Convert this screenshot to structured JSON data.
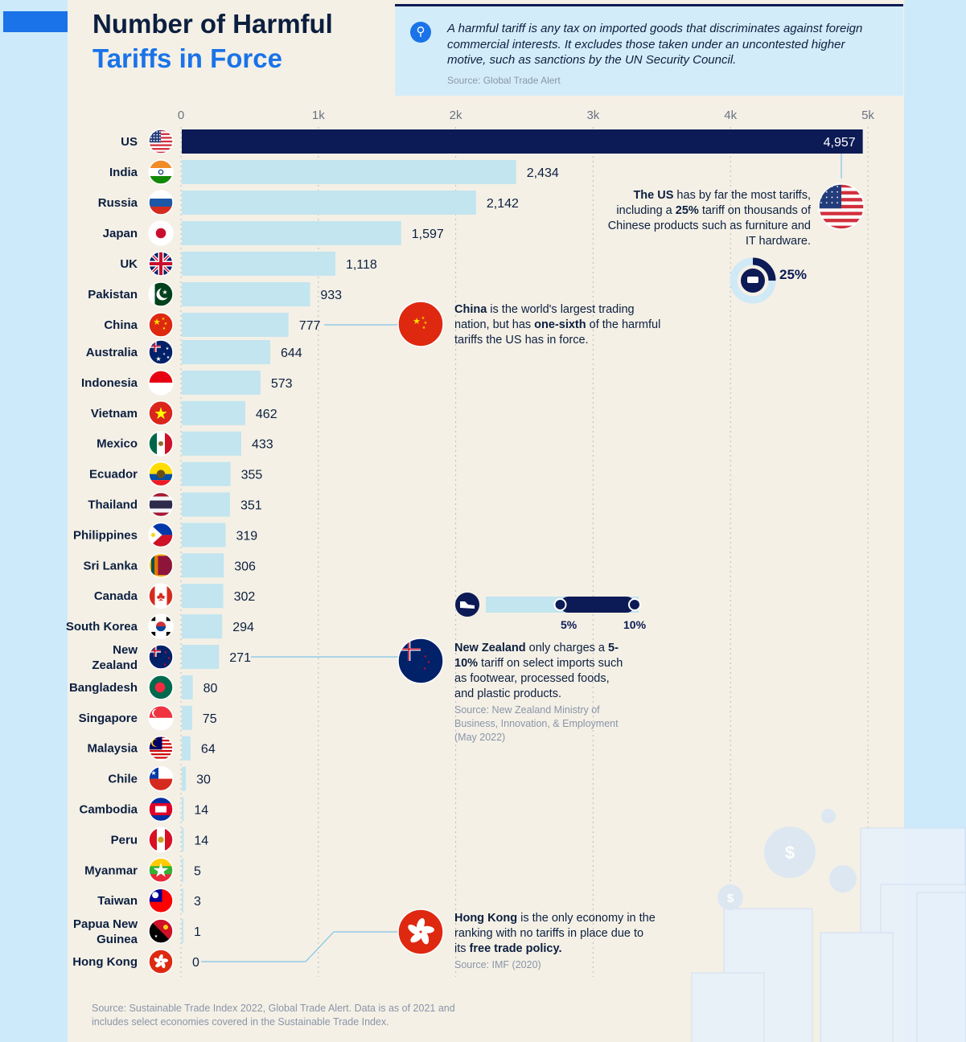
{
  "header": {
    "title_line1": "Number of Harmful",
    "title_line2": "Tariffs in Force",
    "definition": "A harmful tariff is any tax on imported goods that discriminates against foreign commercial interests. It excludes those taken under an uncontested higher motive, such as sanctions by the UN Security Council.",
    "definition_source": "Source: Global Trade Alert",
    "search_icon": "magnifier-icon"
  },
  "chart_data": {
    "type": "bar",
    "orientation": "horizontal",
    "categories": [
      "US",
      "India",
      "Russia",
      "Japan",
      "UK",
      "Pakistan",
      "China",
      "Australia",
      "Indonesia",
      "Vietnam",
      "Mexico",
      "Ecuador",
      "Thailand",
      "Philippines",
      "Sri Lanka",
      "Canada",
      "South Korea",
      "New Zealand",
      "Bangladesh",
      "Singapore",
      "Malaysia",
      "Chile",
      "Cambodia",
      "Peru",
      "Myanmar",
      "Taiwan",
      "Papua New Guinea",
      "Hong Kong"
    ],
    "values": [
      4957,
      2434,
      2142,
      1597,
      1118,
      933,
      777,
      644,
      573,
      462,
      433,
      355,
      351,
      319,
      306,
      302,
      294,
      271,
      80,
      75,
      64,
      30,
      14,
      14,
      5,
      3,
      1,
      0
    ],
    "value_labels": [
      "4,957",
      "2,434",
      "2,142",
      "1,597",
      "1,118",
      "933",
      "777",
      "644",
      "573",
      "462",
      "433",
      "355",
      "351",
      "319",
      "306",
      "302",
      "294",
      "271",
      "80",
      "75",
      "64",
      "30",
      "14",
      "14",
      "5",
      "3",
      "1",
      "0"
    ],
    "xlim": [
      0,
      5000
    ],
    "x_ticks": [
      0,
      1000,
      2000,
      3000,
      4000,
      5000
    ],
    "x_tick_labels": [
      "0",
      "1k",
      "2k",
      "3k",
      "4k",
      "5k"
    ],
    "highlight_category": "US",
    "colors": {
      "bar": "#c2e5ef",
      "highlight_bar": "#0c1a55",
      "title_dark": "#0c1f3f",
      "title_blue": "#1a73e8"
    },
    "grid": true,
    "flag_icons": [
      "us-flag-icon",
      "india-flag-icon",
      "russia-flag-icon",
      "japan-flag-icon",
      "uk-flag-icon",
      "pakistan-flag-icon",
      "china-flag-icon",
      "australia-flag-icon",
      "indonesia-flag-icon",
      "vietnam-flag-icon",
      "mexico-flag-icon",
      "ecuador-flag-icon",
      "thailand-flag-icon",
      "philippines-flag-icon",
      "sri-lanka-flag-icon",
      "canada-flag-icon",
      "south-korea-flag-icon",
      "new-zealand-flag-icon",
      "bangladesh-flag-icon",
      "singapore-flag-icon",
      "malaysia-flag-icon",
      "chile-flag-icon",
      "cambodia-flag-icon",
      "peru-flag-icon",
      "myanmar-flag-icon",
      "taiwan-flag-icon",
      "papua-new-guinea-flag-icon",
      "hong-kong-flag-icon"
    ]
  },
  "annotations": {
    "us": {
      "bold": "The US",
      "text1": " has by far the most tariffs, including a ",
      "bold2": "25%",
      "text2": " tariff on thousands of Chinese products such as furniture and IT hardware.",
      "percent": "25%",
      "icon": "armchair-icon"
    },
    "china": {
      "bold": "China",
      "text1": " is the world's largest trading nation, but has ",
      "bold2": "one-sixth",
      "text2": " of the harmful tariffs the US has in force."
    },
    "new_zealand": {
      "bold": "New Zealand",
      "text1": " only charges a ",
      "bold2": "5-10%",
      "text2": " tariff on select imports such as footwear, processed foods, and plastic products.",
      "source": "Source: New Zealand Ministry of Business, Innovation, & Employment (May 2022)",
      "range_low": "5%",
      "range_high": "10%",
      "range_low_fraction": 0.05,
      "range_high_fraction": 0.1,
      "icon": "shoe-icon"
    },
    "hong_kong": {
      "bold": "Hong Kong",
      "text1": " is the only economy in the ranking with no tariffs in place due to its ",
      "bold2": "free trade policy.",
      "source": "Source: IMF (2020)"
    }
  },
  "footer": "Source: Sustainable Trade Index 2022, Global Trade Alert. Data is as of 2021 and includes select economies covered in the Sustainable Trade Index.",
  "decorations": {
    "coin_symbol": "$",
    "icon": "skyline-illustration"
  }
}
